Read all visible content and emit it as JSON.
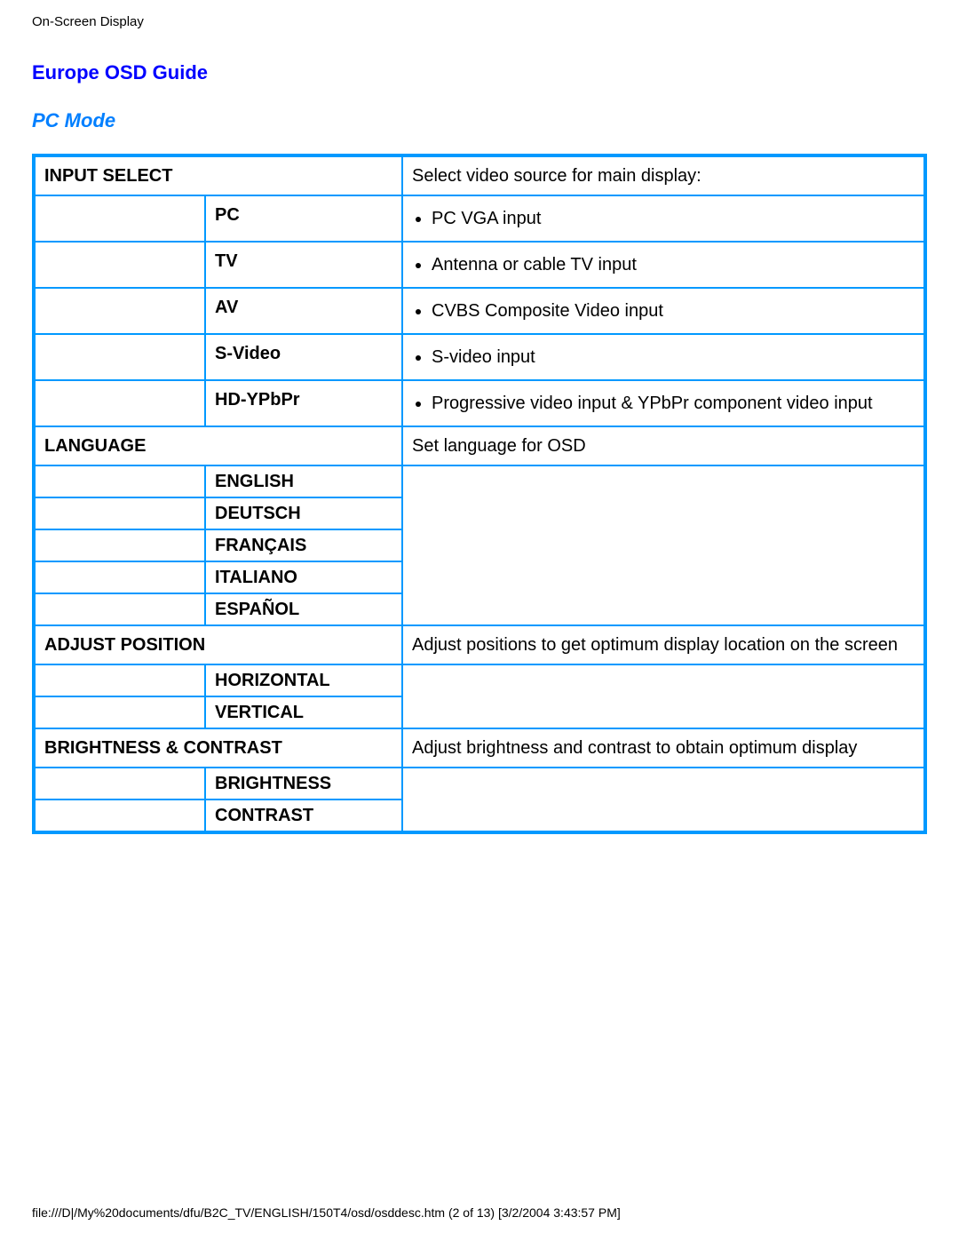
{
  "page": {
    "header_small": "On-Screen Display",
    "title_main": "Europe OSD Guide",
    "title_sub": "PC Mode",
    "footer": "file:///D|/My%20documents/dfu/B2C_TV/ENGLISH/150T4/osd/osddesc.htm (2 of 13) [3/2/2004 3:43:57 PM]"
  },
  "colors": {
    "border": "#0099ff",
    "title_main": "#0000ff",
    "title_sub": "#007fff",
    "text": "#000000",
    "background": "#ffffff"
  },
  "sections": {
    "input_select": {
      "label": "INPUT SELECT",
      "description": "Select video source for main display:",
      "items": [
        {
          "name": "PC",
          "bullet": "PC VGA input"
        },
        {
          "name": "TV",
          "bullet": "Antenna or cable TV input"
        },
        {
          "name": "AV",
          "bullet": "CVBS Composite Video input"
        },
        {
          "name": "S-Video",
          "bullet": "S-video input"
        },
        {
          "name": "HD-YPbPr",
          "bullet": "Progressive video input & YPbPr component video input"
        }
      ]
    },
    "language": {
      "label": "LANGUAGE",
      "description": "Set language for OSD",
      "items": [
        {
          "name": "ENGLISH"
        },
        {
          "name": "DEUTSCH"
        },
        {
          "name": "FRANÇAIS"
        },
        {
          "name": "ITALIANO"
        },
        {
          "name": "ESPAÑOL"
        }
      ]
    },
    "adjust_position": {
      "label": "ADJUST POSITION",
      "description": "Adjust positions to get optimum display location on the screen",
      "items": [
        {
          "name": "HORIZONTAL"
        },
        {
          "name": "VERTICAL"
        }
      ]
    },
    "brightness_contrast": {
      "label": "BRIGHTNESS & CONTRAST",
      "description": "Adjust brightness and contrast to obtain optimum display",
      "items": [
        {
          "name": "BRIGHTNESS"
        },
        {
          "name": "CONTRAST"
        }
      ]
    }
  }
}
